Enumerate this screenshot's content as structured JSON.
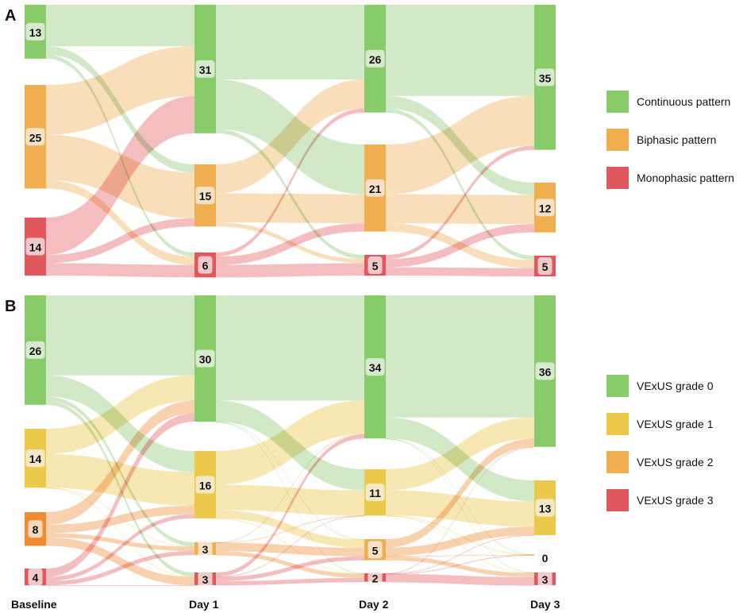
{
  "chart_data": [
    {
      "type": "sankey",
      "panel": "A",
      "stages": [
        "Baseline",
        "Day 1",
        "Day 2",
        "Day 3"
      ],
      "categories": [
        "Continuous pattern",
        "Biphasic pattern",
        "Monophasic pattern"
      ],
      "colors": {
        "node": [
          "#88cc6a",
          "#f0ae4e",
          "#e0585c"
        ],
        "link": [
          "#c9e6bd",
          "#f7d9ad",
          "#f2b3b5"
        ]
      },
      "node_values": [
        [
          13,
          25,
          14
        ],
        [
          31,
          15,
          6
        ],
        [
          26,
          21,
          5
        ],
        [
          35,
          12,
          5
        ]
      ],
      "flows": [
        [
          [
            10,
            2,
            1
          ],
          [
            12,
            11,
            2
          ],
          [
            9,
            2,
            3
          ]
        ],
        [
          [
            18,
            12,
            1
          ],
          [
            7,
            7,
            1
          ],
          [
            1,
            2,
            3
          ]
        ],
        [
          [
            22,
            3,
            1
          ],
          [
            12,
            7,
            2
          ],
          [
            1,
            2,
            2
          ]
        ]
      ],
      "legend": [
        "Continuous pattern",
        "Biphasic pattern",
        "Monophasic pattern"
      ],
      "legend_position": "right"
    },
    {
      "type": "sankey",
      "panel": "B",
      "stages": [
        "Baseline",
        "Day 1",
        "Day 2",
        "Day 3"
      ],
      "categories": [
        "VExUS grade 0",
        "VExUS grade 1",
        "VExUS grade 2",
        "VExUS grade 3"
      ],
      "colors": {
        "node": [
          "#88cc6a",
          "#ecc94b",
          "#f0ae4e",
          "#e0585c"
        ],
        "node_alt_grade2": "#f08c30",
        "link": [
          "#c9e6bd",
          "#f6e3a6",
          "#f7c9a0",
          "#f2b3b5"
        ]
      },
      "node_values": [
        [
          26,
          14,
          8,
          4
        ],
        [
          30,
          16,
          3,
          3
        ],
        [
          34,
          11,
          5,
          2
        ],
        [
          36,
          13,
          0,
          3
        ]
      ],
      "flows": [
        [
          [
            19,
            5,
            1,
            1
          ],
          [
            6,
            8,
            0,
            0
          ],
          [
            3,
            2,
            1,
            2
          ],
          [
            2,
            1,
            1,
            0
          ]
        ],
        [
          [
            25,
            5,
            0,
            0
          ],
          [
            8,
            6,
            2,
            0
          ],
          [
            0,
            0,
            2,
            1
          ],
          [
            1,
            0,
            1,
            1
          ]
        ],
        [
          [
            29,
            5,
            0,
            0
          ],
          [
            5,
            6,
            0,
            0
          ],
          [
            2,
            2,
            0,
            1
          ],
          [
            0,
            0,
            0,
            2
          ]
        ]
      ],
      "legend": [
        "VExUS grade 0",
        "VExUS grade 1",
        "VExUS grade 2",
        "VExUS grade 3"
      ],
      "legend_position": "right"
    }
  ],
  "panels": [
    {
      "letter": "A"
    },
    {
      "letter": "B"
    }
  ],
  "x_axis": {
    "labels": [
      "Baseline",
      "Day 1",
      "Day 2",
      "Day 3"
    ]
  }
}
